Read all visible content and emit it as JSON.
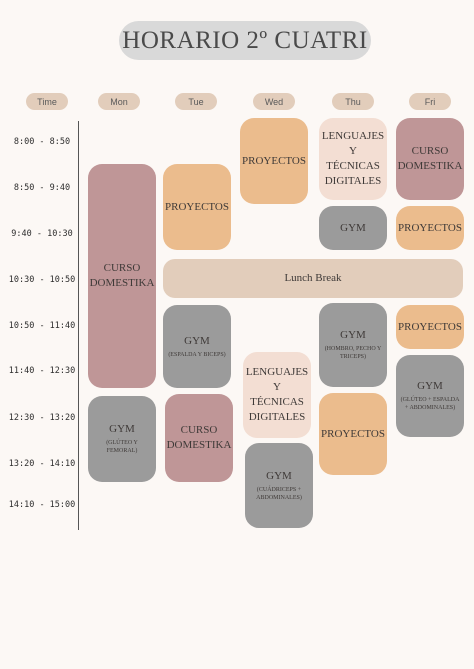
{
  "title": "HORARIO 2º CUATRI",
  "headers": {
    "time": "Time",
    "mon": "Mon",
    "tue": "Tue",
    "wed": "Wed",
    "thu": "Thu",
    "fri": "Fri"
  },
  "times": [
    "8:00 - 8:50",
    "8:50 - 9:40",
    "9:40 - 10:30",
    "10:30 - 10:50",
    "10:50 - 11:40",
    "11:40 - 12:30",
    "12:30 - 13:20",
    "13:20 - 14:10",
    "14:10 - 15:00"
  ],
  "colors": {
    "pink": "#bf9697",
    "peach": "#ebbc8d",
    "blush": "#f3ded3",
    "grey": "#9b9b9b",
    "tan": "#e2cdbb"
  },
  "blocks": {
    "mon_curso": {
      "title": "CURSO DOMESTIKA"
    },
    "mon_gym": {
      "title": "GYM",
      "sub": "(GLÚTEO Y FEMORAL)"
    },
    "tue_proyectos": {
      "title": "PROYECTOS"
    },
    "tue_gym": {
      "title": "GYM",
      "sub": "(ESPALDA Y BICEPS)"
    },
    "tue_curso": {
      "title": "CURSO DOMESTIKA"
    },
    "wed_proyectos": {
      "title": "PROYECTOS"
    },
    "wed_lenguajes": {
      "title": "LENGUAJES Y TÉCNICAS DIGITALES"
    },
    "wed_gym": {
      "title": "GYM",
      "sub": "(CUÁDRICEPS + ABDOMINALES)"
    },
    "thu_lenguajes": {
      "title": "LENGUAJES Y TÉCNICAS DIGITALES"
    },
    "thu_gym1": {
      "title": "GYM"
    },
    "thu_gym2": {
      "title": "GYM",
      "sub": "(HOMBRO, PECHO Y TRICEPS)"
    },
    "thu_proyectos": {
      "title": "PROYECTOS"
    },
    "fri_curso": {
      "title": "CURSO DOMESTIKA"
    },
    "fri_proyectos1": {
      "title": "PROYECTOS"
    },
    "fri_proyectos2": {
      "title": "PROYECTOS"
    },
    "fri_gym": {
      "title": "GYM",
      "sub": "(GLÚTEO + ESPALDA + ABDOMINALES)"
    },
    "lunch": {
      "title": "Lunch Break"
    }
  }
}
